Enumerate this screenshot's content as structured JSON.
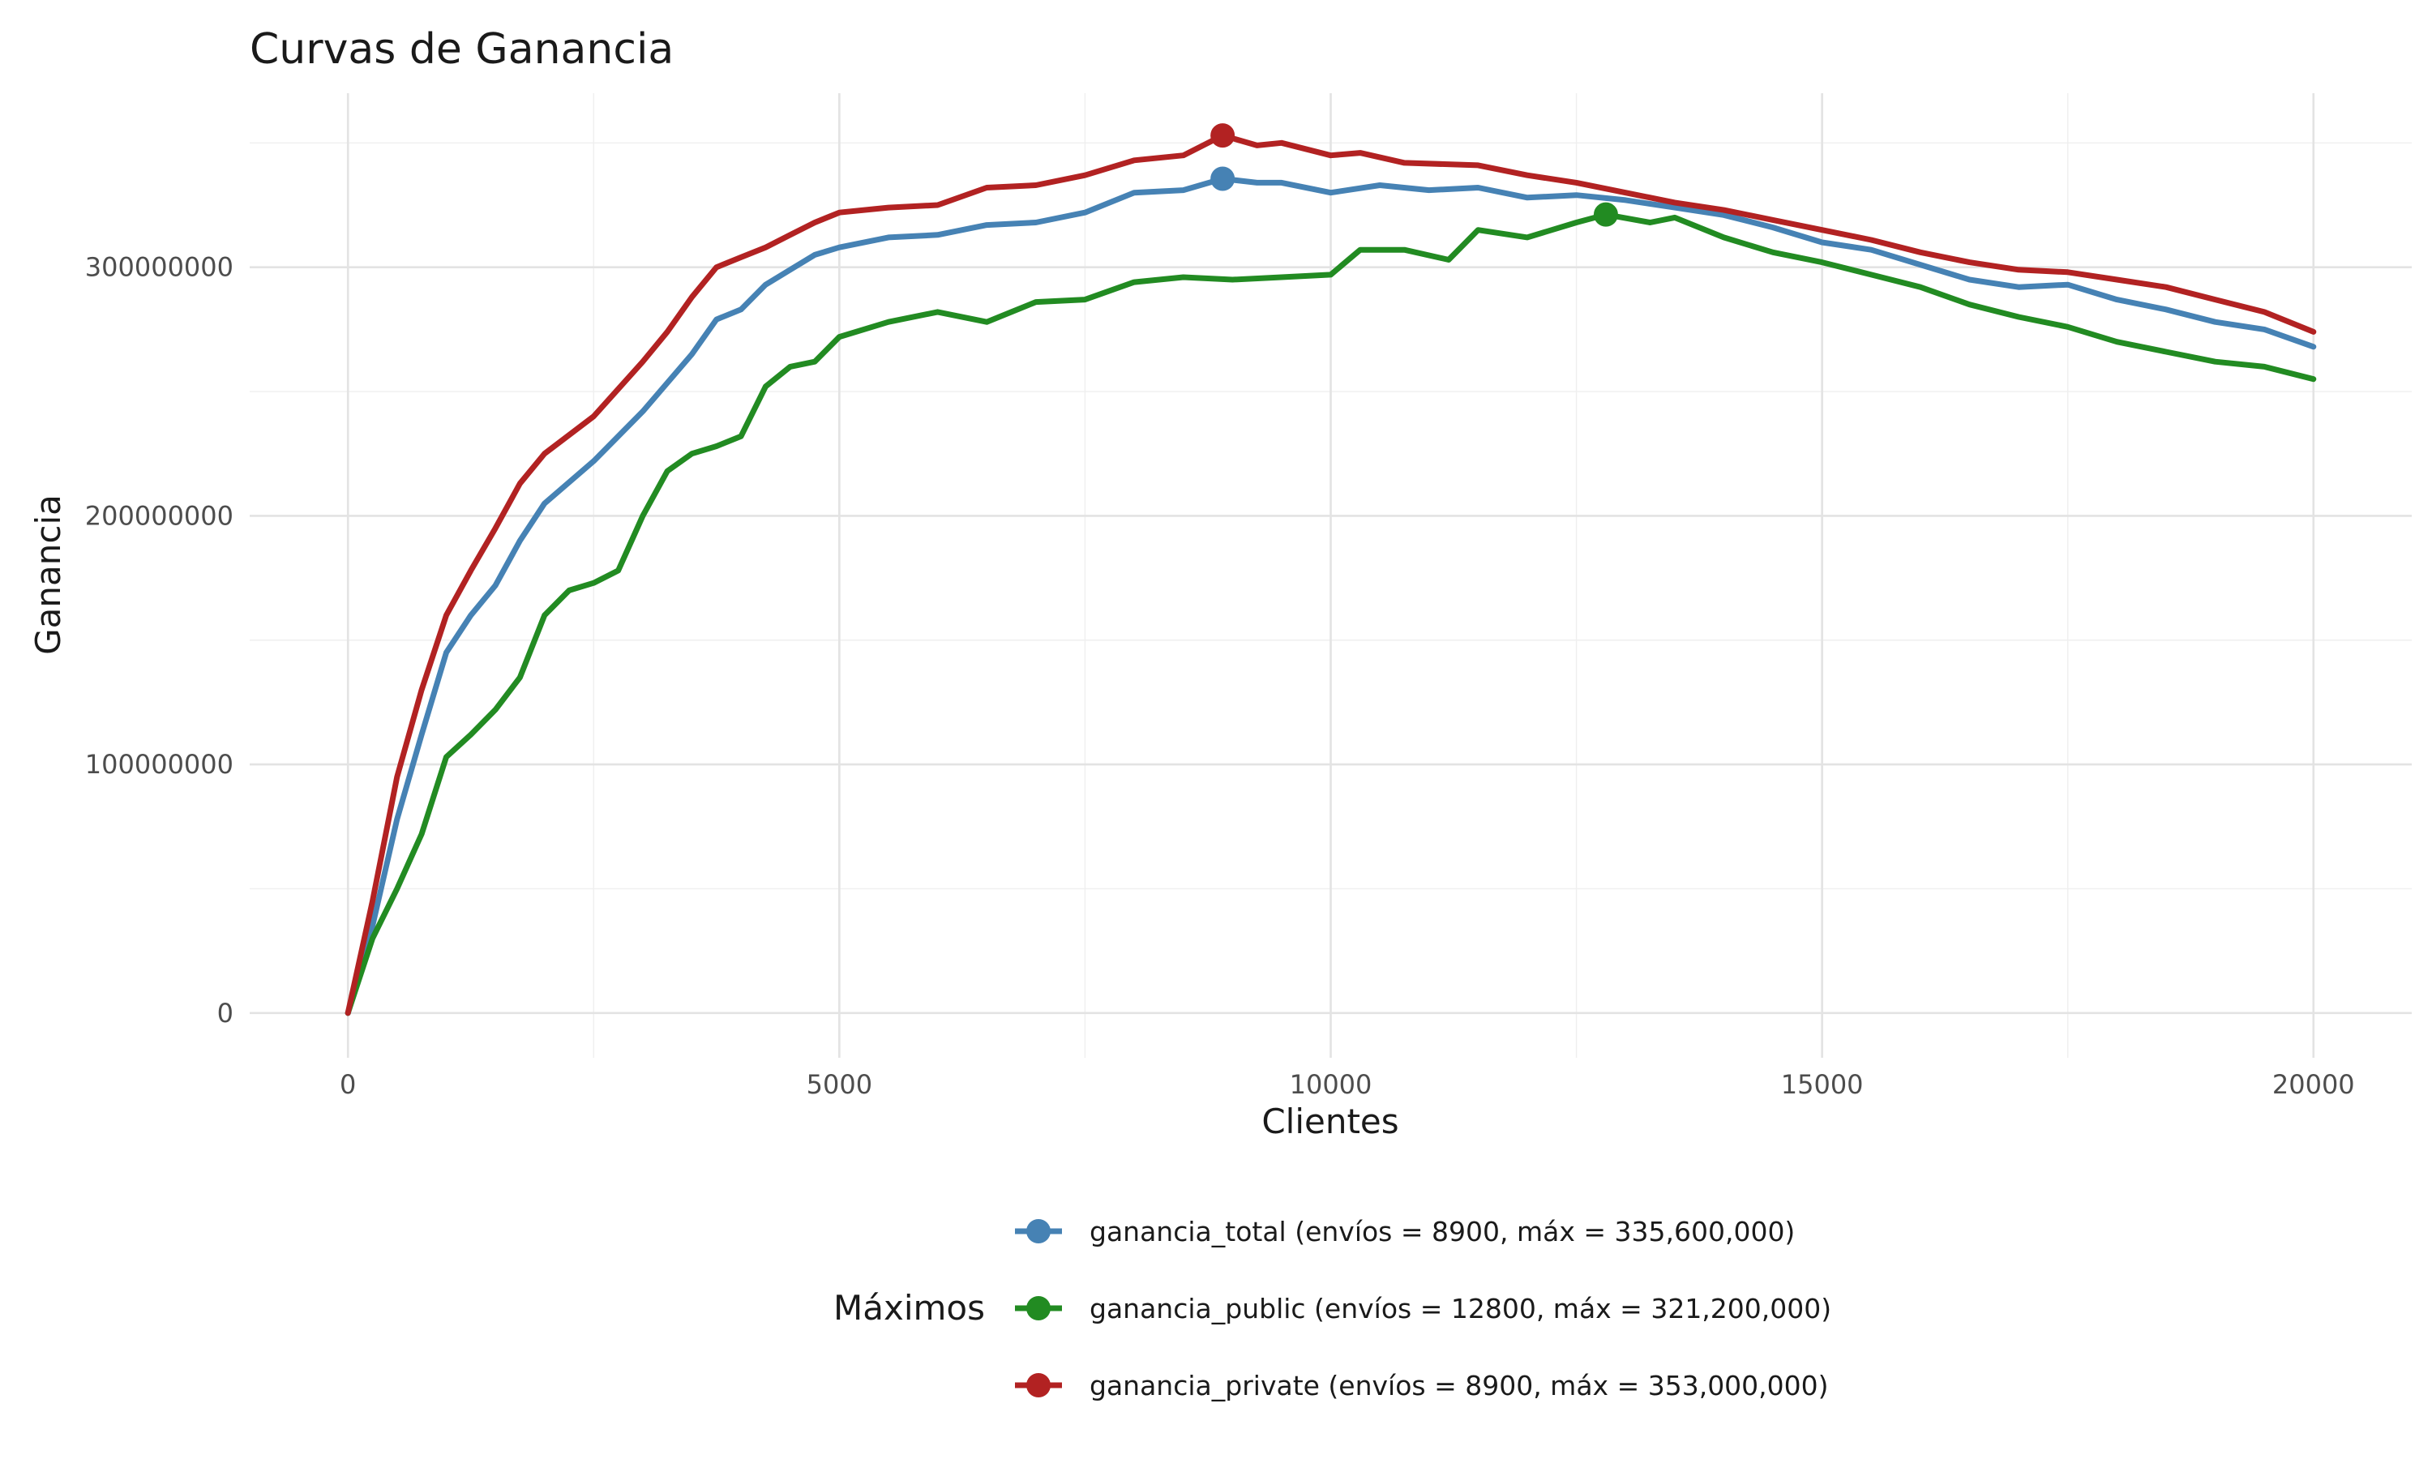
{
  "chart_data": {
    "type": "line",
    "title": "Curvas de Ganancia",
    "xlabel": "Clientes",
    "ylabel": "Ganancia",
    "xlim": [
      -1000,
      21000
    ],
    "ylim": [
      -18000000,
      370000000
    ],
    "x_ticks": [
      0,
      5000,
      10000,
      15000,
      20000
    ],
    "x_tick_labels": [
      "0",
      "5000",
      "10000",
      "15000",
      "20000"
    ],
    "y_ticks": [
      0,
      100000000,
      200000000,
      300000000
    ],
    "y_tick_labels": [
      "0",
      "100000000",
      "200000000",
      "300000000"
    ],
    "grid": true,
    "legend": {
      "title": "Máximos",
      "position": "bottom"
    },
    "series": [
      {
        "name": "ganancia_total",
        "legend_label": "ganancia_total (envíos = 8900, máx = 335,600,000)",
        "color": "#4682B4",
        "max_point": {
          "x": 8900,
          "y": 335600000
        },
        "x": [
          0,
          250,
          500,
          750,
          1000,
          1250,
          1500,
          1750,
          2000,
          2500,
          3000,
          3500,
          3750,
          4000,
          4250,
          4500,
          4750,
          5000,
          5500,
          6000,
          6500,
          7000,
          7500,
          8000,
          8500,
          8900,
          9250,
          9500,
          10000,
          10500,
          11000,
          11500,
          12000,
          12500,
          13000,
          13500,
          14000,
          14500,
          15000,
          15500,
          16000,
          16500,
          17000,
          17500,
          18000,
          18500,
          19000,
          19500,
          20000
        ],
        "y": [
          0,
          35000000,
          78000000,
          112000000,
          145000000,
          160000000,
          172000000,
          190000000,
          205000000,
          222000000,
          242000000,
          265000000,
          279000000,
          283000000,
          293000000,
          299000000,
          305000000,
          308000000,
          312000000,
          313000000,
          317000000,
          318000000,
          322000000,
          330000000,
          331000000,
          335600000,
          334000000,
          334000000,
          330000000,
          333000000,
          331000000,
          332000000,
          328000000,
          329000000,
          327000000,
          324000000,
          321000000,
          316000000,
          310000000,
          307000000,
          301000000,
          295000000,
          292000000,
          293000000,
          287000000,
          283000000,
          278000000,
          275000000,
          268000000
        ]
      },
      {
        "name": "ganancia_public",
        "legend_label": "ganancia_public (envíos = 12800, máx = 321,200,000)",
        "color": "#228B22",
        "max_point": {
          "x": 12800,
          "y": 321200000
        },
        "x": [
          0,
          250,
          500,
          750,
          1000,
          1250,
          1500,
          1750,
          2000,
          2250,
          2500,
          2750,
          3000,
          3250,
          3500,
          3750,
          4000,
          4250,
          4500,
          4750,
          5000,
          5500,
          6000,
          6500,
          7000,
          7500,
          8000,
          8500,
          9000,
          9500,
          10000,
          10300,
          10750,
          11200,
          11500,
          12000,
          12500,
          12800,
          13250,
          13500,
          14000,
          14500,
          15000,
          15500,
          16000,
          16500,
          17000,
          17500,
          18000,
          18500,
          19000,
          19500,
          20000
        ],
        "y": [
          0,
          30000000,
          50000000,
          72000000,
          103000000,
          112000000,
          122000000,
          135000000,
          160000000,
          170000000,
          173000000,
          178000000,
          200000000,
          218000000,
          225000000,
          228000000,
          232000000,
          252000000,
          260000000,
          262000000,
          272000000,
          278000000,
          282000000,
          278000000,
          286000000,
          287000000,
          294000000,
          296000000,
          295000000,
          296000000,
          297000000,
          307000000,
          307000000,
          303000000,
          315000000,
          312000000,
          318000000,
          321200000,
          318000000,
          320000000,
          312000000,
          306000000,
          302000000,
          297000000,
          292000000,
          285000000,
          280000000,
          276000000,
          270000000,
          266000000,
          262000000,
          260000000,
          255000000
        ]
      },
      {
        "name": "ganancia_private",
        "legend_label": "ganancia_private (envíos = 8900, máx = 353,000,000)",
        "color": "#B22222",
        "max_point": {
          "x": 8900,
          "y": 353000000
        },
        "x": [
          0,
          250,
          500,
          750,
          1000,
          1250,
          1500,
          1750,
          2000,
          2500,
          3000,
          3250,
          3500,
          3750,
          4000,
          4250,
          4500,
          4750,
          5000,
          5500,
          6000,
          6500,
          7000,
          7500,
          8000,
          8500,
          8900,
          9250,
          9500,
          10000,
          10300,
          10750,
          11500,
          12000,
          12500,
          13000,
          13500,
          14000,
          14500,
          15000,
          15500,
          16000,
          16500,
          17000,
          17500,
          18000,
          18500,
          19000,
          19500,
          20000
        ],
        "y": [
          0,
          45000000,
          95000000,
          130000000,
          160000000,
          178000000,
          195000000,
          213000000,
          225000000,
          240000000,
          262000000,
          274000000,
          288000000,
          300000000,
          304000000,
          308000000,
          313000000,
          318000000,
          322000000,
          324000000,
          325000000,
          332000000,
          333000000,
          337000000,
          343000000,
          345000000,
          353000000,
          349000000,
          350000000,
          345000000,
          346000000,
          342000000,
          341000000,
          337000000,
          334000000,
          330000000,
          326000000,
          323000000,
          319000000,
          315000000,
          311000000,
          306000000,
          302000000,
          299000000,
          298000000,
          295000000,
          292000000,
          287000000,
          282000000,
          274000000
        ]
      }
    ]
  }
}
